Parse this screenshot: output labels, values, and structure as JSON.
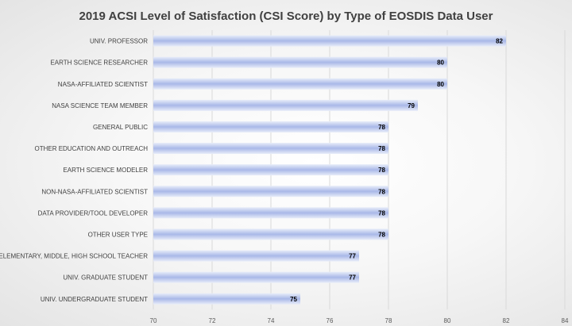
{
  "chart_data": {
    "type": "bar",
    "orientation": "horizontal",
    "title": "2019 ACSI Level of Satisfaction (CSI Score) by Type of EOSDIS Data User",
    "xlabel": "",
    "ylabel": "",
    "categories": [
      "UNIV. PROFESSOR",
      "EARTH SCIENCE RESEARCHER",
      "NASA-AFFILIATED SCIENTIST",
      "NASA SCIENCE TEAM MEMBER",
      "GENERAL PUBLIC",
      "OTHER EDUCATION AND OUTREACH",
      "EARTH SCIENCE MODELER",
      "NON-NASA-AFFILIATED SCIENTIST",
      "DATA PROVIDER/TOOL DEVELOPER",
      "OTHER USER TYPE",
      "ELEMENTARY, MIDDLE, HIGH SCHOOL TEACHER",
      "UNIV. GRADUATE STUDENT",
      "UNIV. UNDERGRADUATE STUDENT"
    ],
    "values": [
      82,
      80,
      80,
      79,
      78,
      78,
      78,
      78,
      78,
      78,
      77,
      77,
      75
    ],
    "xlim": [
      70,
      84
    ],
    "xticks": [
      70,
      72,
      74,
      76,
      78,
      80,
      82,
      84
    ],
    "grid": true,
    "legend": "none",
    "bar_color_light": "#e8edf9",
    "bar_color_dark": "#a9b8e8"
  }
}
